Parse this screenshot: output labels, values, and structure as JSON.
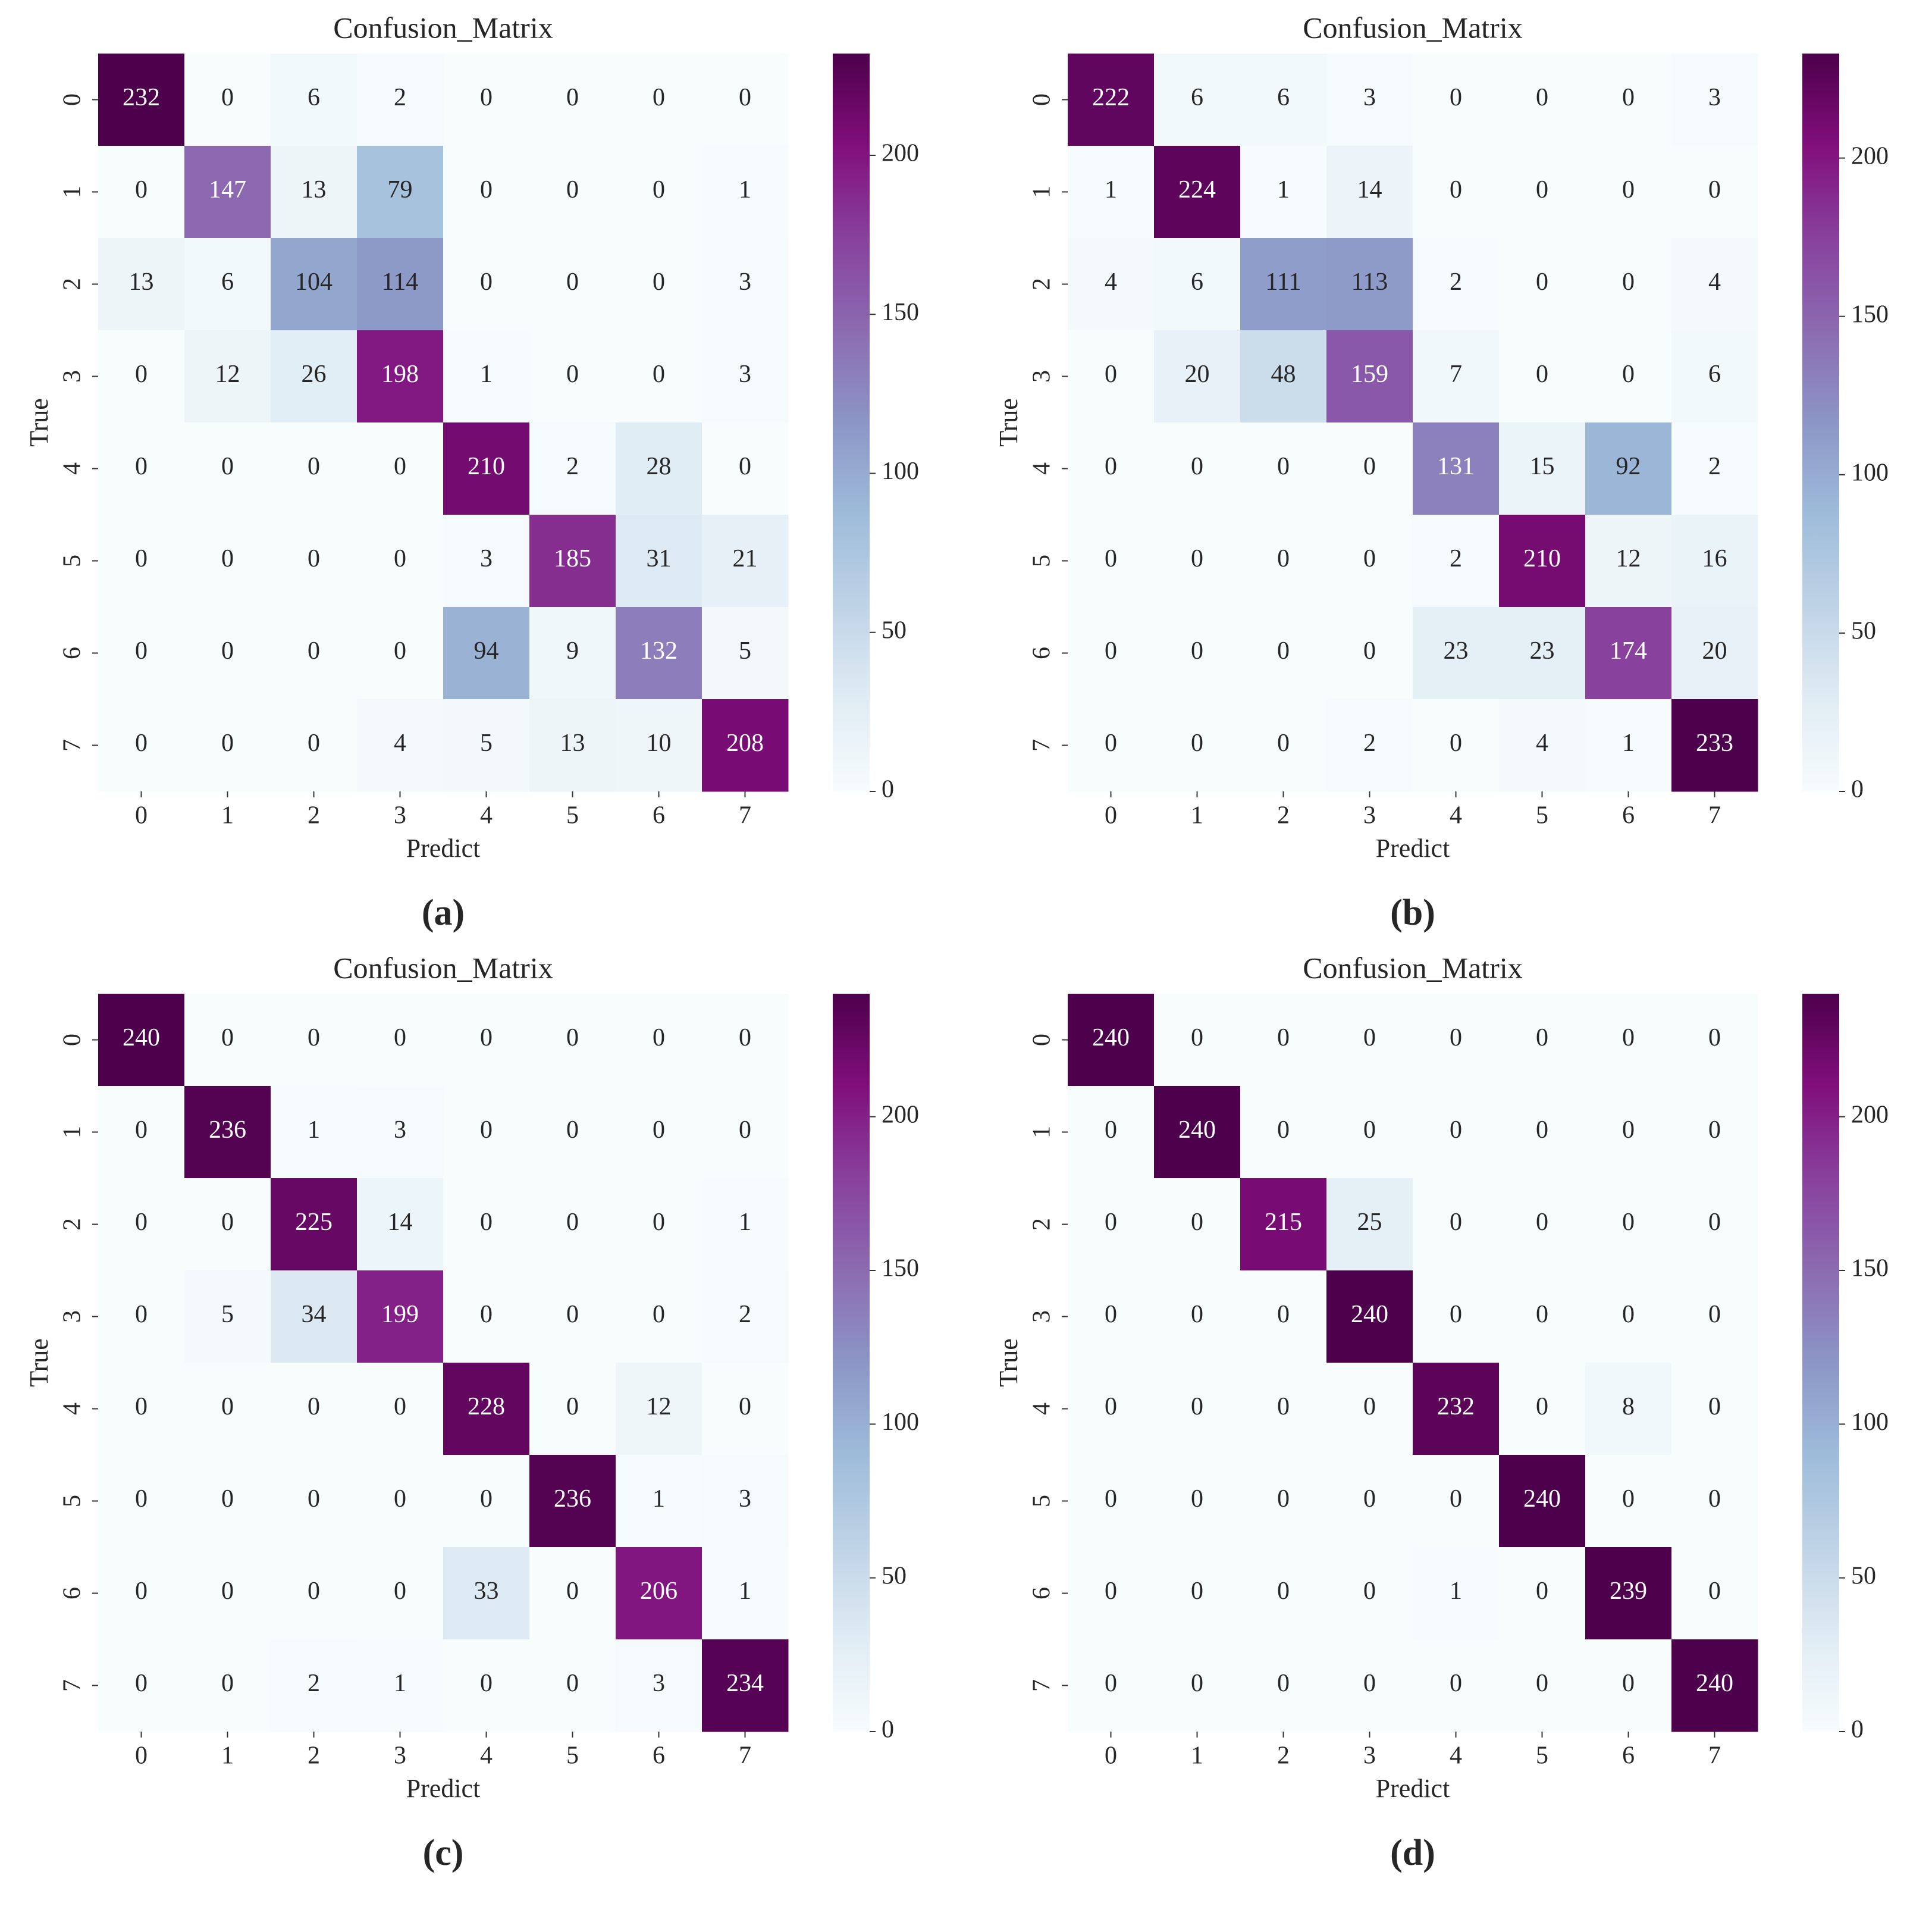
{
  "chart_data": [
    {
      "type": "heatmap",
      "title": "Confusion_Matrix",
      "xlabel": "Predict",
      "ylabel": "True",
      "caption": "(a)",
      "x_categories": [
        0,
        1,
        2,
        3,
        4,
        5,
        6,
        7
      ],
      "y_categories": [
        0,
        1,
        2,
        3,
        4,
        5,
        6,
        7
      ],
      "values": [
        [
          232,
          0,
          6,
          2,
          0,
          0,
          0,
          0
        ],
        [
          0,
          147,
          13,
          79,
          0,
          0,
          0,
          1
        ],
        [
          13,
          6,
          104,
          114,
          0,
          0,
          0,
          3
        ],
        [
          0,
          12,
          26,
          198,
          1,
          0,
          0,
          3
        ],
        [
          0,
          0,
          0,
          0,
          210,
          2,
          28,
          0
        ],
        [
          0,
          0,
          0,
          0,
          3,
          185,
          31,
          21
        ],
        [
          0,
          0,
          0,
          0,
          94,
          9,
          132,
          5
        ],
        [
          0,
          0,
          0,
          4,
          5,
          13,
          10,
          208
        ]
      ],
      "colormap": [
        "#f7fcfd",
        "#e0ecf4",
        "#bfd3e6",
        "#9ebcda",
        "#8c96c6",
        "#8c6bb1",
        "#88419d",
        "#810f7c",
        "#4d004b"
      ],
      "zlim": [
        0,
        232
      ],
      "zticks": [
        0,
        50,
        100,
        150,
        200
      ]
    },
    {
      "type": "heatmap",
      "title": "Confusion_Matrix",
      "xlabel": "Predict",
      "ylabel": "True",
      "caption": "(b)",
      "x_categories": [
        0,
        1,
        2,
        3,
        4,
        5,
        6,
        7
      ],
      "y_categories": [
        0,
        1,
        2,
        3,
        4,
        5,
        6,
        7
      ],
      "values": [
        [
          222,
          6,
          6,
          3,
          0,
          0,
          0,
          3
        ],
        [
          1,
          224,
          1,
          14,
          0,
          0,
          0,
          0
        ],
        [
          4,
          6,
          111,
          113,
          2,
          0,
          0,
          4
        ],
        [
          0,
          20,
          48,
          159,
          7,
          0,
          0,
          6
        ],
        [
          0,
          0,
          0,
          0,
          131,
          15,
          92,
          2
        ],
        [
          0,
          0,
          0,
          0,
          2,
          210,
          12,
          16
        ],
        [
          0,
          0,
          0,
          0,
          23,
          23,
          174,
          20
        ],
        [
          0,
          0,
          0,
          2,
          0,
          4,
          1,
          233
        ]
      ],
      "colormap": [
        "#f7fcfd",
        "#e0ecf4",
        "#bfd3e6",
        "#9ebcda",
        "#8c96c6",
        "#8c6bb1",
        "#88419d",
        "#810f7c",
        "#4d004b"
      ],
      "zlim": [
        0,
        233
      ],
      "zticks": [
        0,
        50,
        100,
        150,
        200
      ]
    },
    {
      "type": "heatmap",
      "title": "Confusion_Matrix",
      "xlabel": "Predict",
      "ylabel": "True",
      "caption": "(c)",
      "x_categories": [
        0,
        1,
        2,
        3,
        4,
        5,
        6,
        7
      ],
      "y_categories": [
        0,
        1,
        2,
        3,
        4,
        5,
        6,
        7
      ],
      "values": [
        [
          240,
          0,
          0,
          0,
          0,
          0,
          0,
          0
        ],
        [
          0,
          236,
          1,
          3,
          0,
          0,
          0,
          0
        ],
        [
          0,
          0,
          225,
          14,
          0,
          0,
          0,
          1
        ],
        [
          0,
          5,
          34,
          199,
          0,
          0,
          0,
          2
        ],
        [
          0,
          0,
          0,
          0,
          228,
          0,
          12,
          0
        ],
        [
          0,
          0,
          0,
          0,
          0,
          236,
          1,
          3
        ],
        [
          0,
          0,
          0,
          0,
          33,
          0,
          206,
          1
        ],
        [
          0,
          0,
          2,
          1,
          0,
          0,
          3,
          234
        ]
      ],
      "colormap": [
        "#f7fcfd",
        "#e0ecf4",
        "#bfd3e6",
        "#9ebcda",
        "#8c96c6",
        "#8c6bb1",
        "#88419d",
        "#810f7c",
        "#4d004b"
      ],
      "zlim": [
        0,
        240
      ],
      "zticks": [
        0,
        50,
        100,
        150,
        200
      ]
    },
    {
      "type": "heatmap",
      "title": "Confusion_Matrix",
      "xlabel": "Predict",
      "ylabel": "True",
      "caption": "(d)",
      "x_categories": [
        0,
        1,
        2,
        3,
        4,
        5,
        6,
        7
      ],
      "y_categories": [
        0,
        1,
        2,
        3,
        4,
        5,
        6,
        7
      ],
      "values": [
        [
          240,
          0,
          0,
          0,
          0,
          0,
          0,
          0
        ],
        [
          0,
          240,
          0,
          0,
          0,
          0,
          0,
          0
        ],
        [
          0,
          0,
          215,
          25,
          0,
          0,
          0,
          0
        ],
        [
          0,
          0,
          0,
          240,
          0,
          0,
          0,
          0
        ],
        [
          0,
          0,
          0,
          0,
          232,
          0,
          8,
          0
        ],
        [
          0,
          0,
          0,
          0,
          0,
          240,
          0,
          0
        ],
        [
          0,
          0,
          0,
          0,
          1,
          0,
          239,
          0
        ],
        [
          0,
          0,
          0,
          0,
          0,
          0,
          0,
          240
        ]
      ],
      "colormap": [
        "#f7fcfd",
        "#e0ecf4",
        "#bfd3e6",
        "#9ebcda",
        "#8c96c6",
        "#8c6bb1",
        "#88419d",
        "#810f7c",
        "#4d004b"
      ],
      "zlim": [
        0,
        240
      ],
      "zticks": [
        0,
        50,
        100,
        150,
        200
      ]
    }
  ]
}
